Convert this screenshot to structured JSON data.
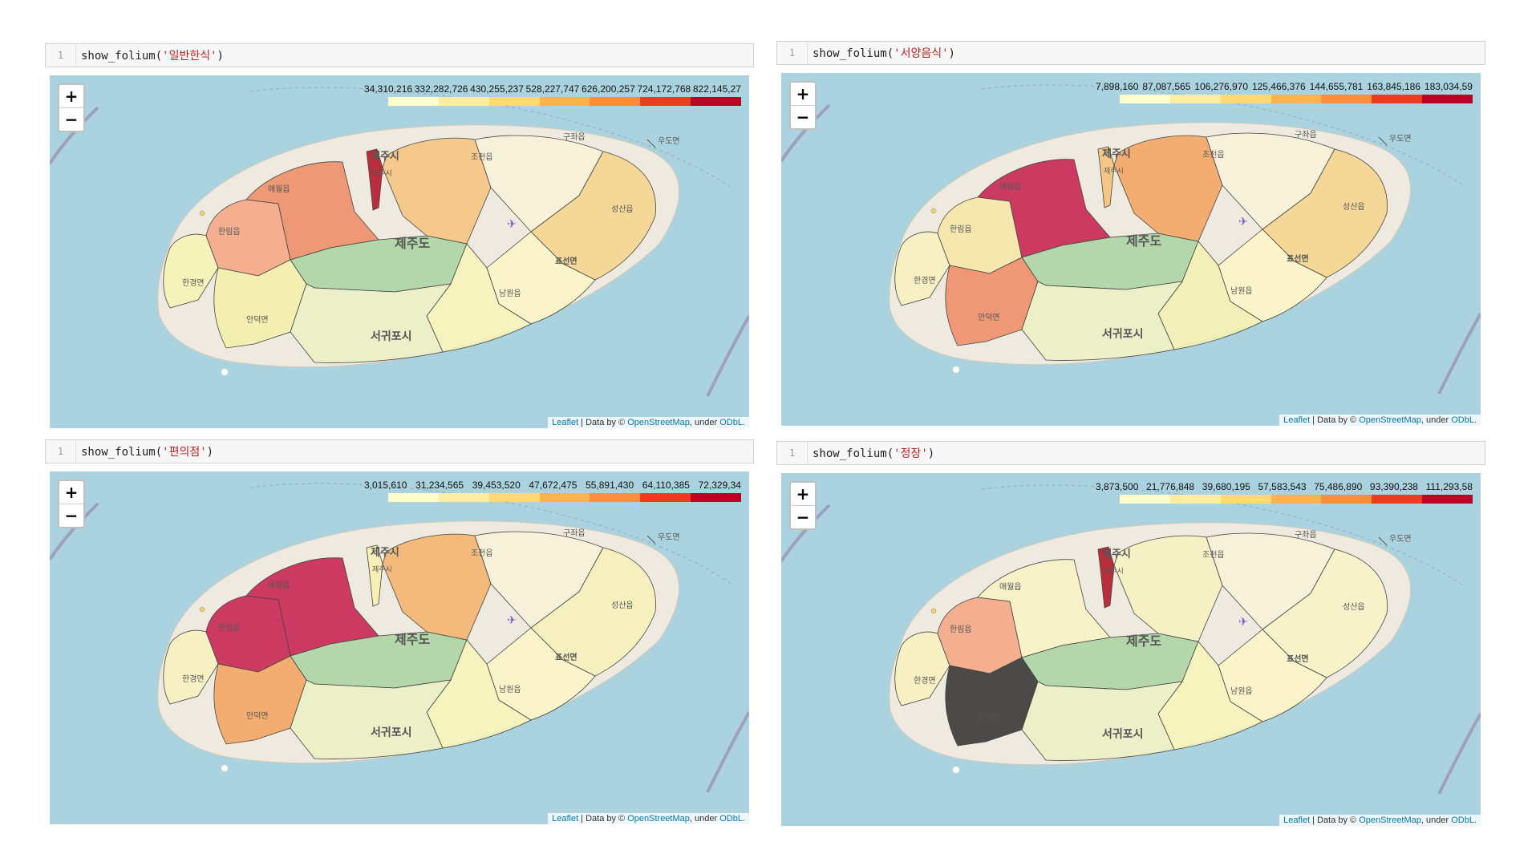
{
  "panels": [
    {
      "line_number": "1",
      "code_prefix": "show_folium(",
      "code_arg": "'일반한식'",
      "code_suffix": ")",
      "legend_ticks": [
        "34,310,216",
        "332,282,726",
        "430,255,237",
        "528,227,747",
        "626,200,257",
        "724,172,768",
        "822,145,27"
      ],
      "region_colors": {
        "aewol": "#ef8a62",
        "hallim": "#f4a582",
        "hangyeong": "#f7f4b3",
        "andeok": "#f2f0a8",
        "jeju_city": "#b2182b",
        "jocheon": "#f6c27d",
        "gujwa": "#f8f2d8",
        "seongsan": "#f6d38b",
        "pyoseon": "#fdf6c6",
        "namwon": "#f8f4b8",
        "seogwipo": "#e9f1c2",
        "jungmun": "#f1f1bd",
        "hallasan": "#9fcf9a"
      }
    },
    {
      "line_number": "1",
      "code_prefix": "show_folium(",
      "code_arg": "'서양음식'",
      "code_suffix": ")",
      "legend_ticks": [
        "7,898,160",
        "87,087,565",
        "106,276,970",
        "125,466,376",
        "144,655,781",
        "163,845,186",
        "183,034,59"
      ],
      "region_colors": {
        "aewol": "#c51b4a",
        "hallim": "#f7e6a6",
        "hangyeong": "#f8f1bd",
        "andeok": "#ef8a62",
        "jeju_city": "#f6c27d",
        "jocheon": "#f4a25c",
        "gujwa": "#f8f2d8",
        "seongsan": "#f6d38b",
        "pyoseon": "#fdf6c6",
        "namwon": "#f2f1b0",
        "seogwipo": "#e9f1c2",
        "jungmun": "#f1f1bd",
        "hallasan": "#9fcf9a"
      }
    },
    {
      "line_number": "1",
      "code_prefix": "show_folium(",
      "code_arg": "'편의점'",
      "code_suffix": ")",
      "legend_ticks": [
        "3,015,610",
        "31,234,565",
        "39,453,520",
        "47,672,475",
        "55,891,430",
        "64,110,385",
        "72,329,34"
      ],
      "region_colors": {
        "aewol": "#c51b4a",
        "hallim": "#c51b4a",
        "hangyeong": "#f8f1bd",
        "andeok": "#f4a25c",
        "jeju_city": "#f7f0b0",
        "jocheon": "#f4b26a",
        "gujwa": "#f8f2d8",
        "seongsan": "#f7f1b8",
        "pyoseon": "#fdf6c6",
        "namwon": "#f8f4b8",
        "seogwipo": "#e9f1c2",
        "jungmun": "#f1f1bd",
        "hallasan": "#9fcf9a"
      }
    },
    {
      "line_number": "1",
      "code_prefix": "show_folium(",
      "code_arg": "'정장'",
      "code_suffix": ")",
      "legend_ticks": [
        "3,873,500",
        "21,776,848",
        "39,680,195",
        "57,583,543",
        "75,486,890",
        "93,390,238",
        "111,293,58"
      ],
      "region_colors": {
        "aewol": "#f8f2c2",
        "hallim": "#f4a582",
        "hangyeong": "#f8f1bd",
        "andeok": "#2e2e2e",
        "jeju_city": "#b2182b",
        "jocheon": "#f7f2c0",
        "gujwa": "#f8f2d8",
        "seongsan": "#f8f3c6",
        "pyoseon": "#fdf6c6",
        "namwon": "#f8f4b8",
        "seogwipo": "#e9f1c2",
        "jungmun": "#f1f1bd",
        "hallasan": "#9fcf9a"
      }
    }
  ],
  "legend_colors": [
    "#ffffcc",
    "#ffeda0",
    "#fed976",
    "#feb24c",
    "#fd8d3c",
    "#f03b20",
    "#bd0026"
  ],
  "place_labels": {
    "jeju_city": "제주시",
    "jeju_city_small": "제주시",
    "jeju_island": "제주도",
    "seogwipo": "서귀포시",
    "aewol": "애월읍",
    "hallim": "한림읍",
    "hangyeong": "한경면",
    "andeok": "안덕면",
    "jocheon": "조천읍",
    "gujwa": "구좌읍",
    "udo": "우도면",
    "seongsan": "성산읍",
    "pyoseon": "표선면",
    "namwon": "남원읍"
  },
  "zoom": {
    "in": "+",
    "out": "−"
  },
  "attribution": {
    "leaflet": "Leaflet",
    "sep": " | Data by © ",
    "osm": "OpenStreetMap",
    "under": ", under ",
    "odbl": "ODbL."
  }
}
